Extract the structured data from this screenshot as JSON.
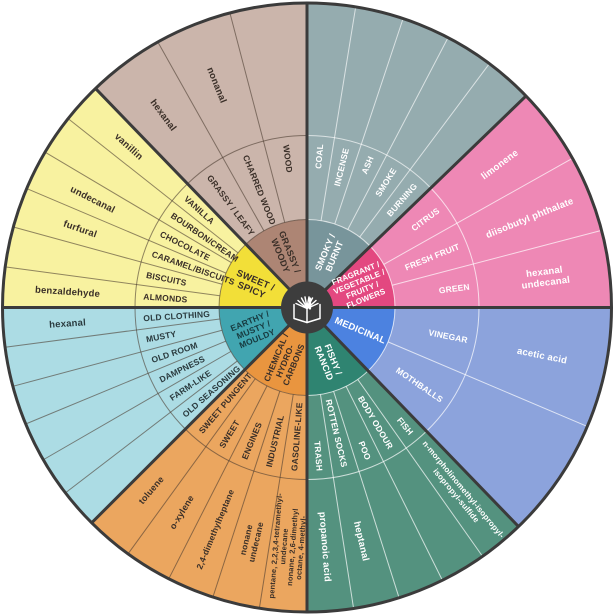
{
  "chart_data": {
    "type": "pie",
    "variant": "sunburst-odour-wheel",
    "rings": [
      "category",
      "descriptor",
      "compound"
    ],
    "legend_position": "none",
    "grid": false,
    "center_icon": "open-book-icon",
    "colors": {
      "background": "#FFFFFF",
      "border": "#3B3B3B",
      "hub": "#3D3D3D",
      "icon": "#FFFFFF"
    },
    "geometry_note": "8 sectors clockwise from 12 o'clock",
    "sectors": [
      {
        "slug": "smoky-burnt",
        "name": "SMOKY / BURNT",
        "start": 0,
        "end": 46,
        "inner_color": "#78959B",
        "ring_color": "#95ACAF",
        "divider_color": "rgba(255,255,255,0.65)",
        "text_color": "#FFFFFF",
        "inner_text_color": "#FFFFFF",
        "inner_label_lines": [
          "SMOKY /",
          "BURNT"
        ],
        "inner_label_size": 9,
        "inner_label_lh": 10,
        "slices": [
          {
            "descriptor": "COAL",
            "compound": []
          },
          {
            "descriptor": "INCENSE",
            "compound": []
          },
          {
            "descriptor": "ASH",
            "compound": []
          },
          {
            "descriptor": "SMOKE",
            "compound": []
          },
          {
            "descriptor": "BURNING",
            "compound": []
          }
        ]
      },
      {
        "slug": "fragrant",
        "name": "FRAGRANT / VEGETABLE / FRUITY / FLOWERS",
        "start": 46,
        "end": 90,
        "inner_color": "#E34880",
        "ring_color": "#EE88B5",
        "divider_color": "rgba(255,255,255,0.7)",
        "text_color": "#FFFFFF",
        "inner_text_color": "#FFFFFF",
        "inner_label_lines": [
          "FRAGRANT /",
          "VEGETABLE /",
          "FRUITY /",
          "FLOWERS"
        ],
        "inner_label_size": 8,
        "inner_label_lh": 9,
        "slices": [
          {
            "descriptor": "CITRUS",
            "compound": [
              "limonene"
            ]
          },
          {
            "descriptor": "FRESH FRUIT",
            "compound": [
              "diisobutyl phthalate"
            ]
          },
          {
            "descriptor": "GREEN",
            "compound": [
              "hexanal",
              "undecanal"
            ],
            "compound_lh": 11
          }
        ]
      },
      {
        "slug": "medicinal",
        "name": "MEDICINAL",
        "start": 90,
        "end": 136,
        "inner_color": "#4C82E0",
        "ring_color": "#8CA3DC",
        "divider_color": "rgba(255,255,255,0.7)",
        "text_color": "#FFFFFF",
        "inner_text_color": "#FFFFFF",
        "inner_label_lines": [
          "MEDICINAL"
        ],
        "inner_label_size": 9.5,
        "inner_label_lh": 10,
        "slices": [
          {
            "descriptor": "VINEGAR",
            "compound": [
              "acetic acid"
            ]
          },
          {
            "descriptor": "MOTHBALLS",
            "compound": []
          }
        ]
      },
      {
        "slug": "fishy-rancid",
        "name": "FISHY / RANCID",
        "start": 136,
        "end": 180,
        "inner_color": "#2F8471",
        "ring_color": "#54927F",
        "divider_color": "rgba(255,255,255,0.7)",
        "text_color": "#FFFFFF",
        "inner_text_color": "#FFFFFF",
        "inner_label_lines": [
          "FISHY /",
          "RANCID"
        ],
        "inner_label_size": 9,
        "inner_label_lh": 10,
        "slices": [
          {
            "descriptor": "FISH",
            "compound": [
              "n-morpholinomethyl-isopropyl-",
              "isopropyl-sulfide"
            ],
            "compound_size": 8,
            "compound_lh": 9.5
          },
          {
            "descriptor": "BODY ODOUR",
            "compound": []
          },
          {
            "descriptor": "POO",
            "compound": []
          },
          {
            "descriptor": "ROTTEN SOCKS",
            "compound": [
              "heptanal"
            ]
          },
          {
            "descriptor": "TRASH",
            "compound": [
              "propanoic acid"
            ]
          }
        ]
      },
      {
        "slug": "chemical-hydrocarbons",
        "name": "CHEMICAL / HYDROCARBONS",
        "start": 180,
        "end": 225,
        "inner_color": "#E9953F",
        "ring_color": "#EBA65F",
        "divider_color": "rgba(75,60,48,0.6)",
        "text_color": "#3A2F28",
        "inner_text_color": "#3A2F28",
        "inner_label_lines": [
          "CHEMICAL /",
          "HYDRO-",
          "CARBONS"
        ],
        "inner_label_size": 8.5,
        "inner_label_lh": 9.5,
        "slices": [
          {
            "descriptor": "GASOLINE-LIKE",
            "compound": [
              "pentane, 2,2,3,4-tetramethyl-",
              "undecane",
              "nonane, 2,6-dimethyl",
              "octane, 4-methyl-"
            ],
            "compound_size": 7.5,
            "compound_lh": 8.5
          },
          {
            "descriptor": "INDUSTRIAL",
            "compound": [
              "nonane",
              "undecane"
            ],
            "compound_size": 8.5,
            "compound_lh": 10
          },
          {
            "descriptor": "ENGINES",
            "compound": [
              "2,4-dimethylheptane"
            ],
            "compound_size": 8.5
          },
          {
            "descriptor": "SWEET",
            "compound": [
              "o-xylene"
            ],
            "compound_size": 9
          },
          {
            "descriptor": "SWEET PUNGENT",
            "compound": [
              "toluene"
            ],
            "compound_size": 9
          }
        ]
      },
      {
        "slug": "earthy-musty-mouldy",
        "name": "EARTHY / MUSTY / MOULDY",
        "start": 225,
        "end": 270,
        "inner_color": "#41A5B0",
        "ring_color": "#ACDCE4",
        "divider_color": "rgba(75,60,48,0.6)",
        "text_color": "#2A3A3E",
        "inner_text_color": "#173A3F",
        "inner_label_lines": [
          "EARTHY /",
          "MUSTY /",
          "MOULDY"
        ],
        "inner_label_size": 8.5,
        "inner_label_lh": 9.5,
        "slices": [
          {
            "descriptor": "OLD SEASONING",
            "compound": []
          },
          {
            "descriptor": "FARM-LIKE",
            "compound": []
          },
          {
            "descriptor": "DAMPNESS",
            "compound": []
          },
          {
            "descriptor": "OLD ROOM",
            "compound": []
          },
          {
            "descriptor": "MUSTY",
            "compound": []
          },
          {
            "descriptor": "OLD CLOTHING",
            "compound": [
              "hexanal"
            ]
          }
        ]
      },
      {
        "slug": "sweet-spicy",
        "name": "SWEET / SPICY",
        "start": 270,
        "end": 316,
        "inner_color": "#F2DF38",
        "ring_color": "#F8F2A0",
        "divider_color": "rgba(75,60,48,0.6)",
        "text_color": "#3A2F28",
        "inner_text_color": "#3A2F28",
        "inner_label_lines": [
          "SWEET /",
          "SPICY"
        ],
        "inner_label_size": 9.5,
        "inner_label_lh": 10.5,
        "slices": [
          {
            "descriptor": "ALMONDS",
            "compound": [
              "benzaldehyde"
            ]
          },
          {
            "descriptor": "BISCUITS",
            "compound": []
          },
          {
            "descriptor": "CARAMEL/BISCUITS",
            "compound": [
              "furfural"
            ]
          },
          {
            "descriptor": "CHOCOLATE",
            "compound": [
              "undecanal"
            ]
          },
          {
            "descriptor": "BOURBON/CREAM",
            "compound": []
          },
          {
            "descriptor": "VANILLA",
            "compound": [
              "vanillin"
            ]
          }
        ]
      },
      {
        "slug": "grassy-woody",
        "name": "GRASSY / WOODY",
        "start": 316,
        "end": 360,
        "inner_color": "#AD8574",
        "ring_color": "#CBB5AB",
        "divider_color": "rgba(75,60,48,0.6)",
        "text_color": "#3A2F28",
        "inner_text_color": "#3A2F28",
        "inner_label_lines": [
          "GRASSY /",
          "WOODY"
        ],
        "inner_label_size": 9,
        "inner_label_lh": 10,
        "slices": [
          {
            "descriptor": "GRASSY / LEAFY",
            "compound": [
              "hexanal"
            ]
          },
          {
            "descriptor": "CHARRED WOOD",
            "compound": [
              "nonanal"
            ]
          },
          {
            "descriptor": "WOOD",
            "compound": []
          }
        ]
      }
    ]
  }
}
